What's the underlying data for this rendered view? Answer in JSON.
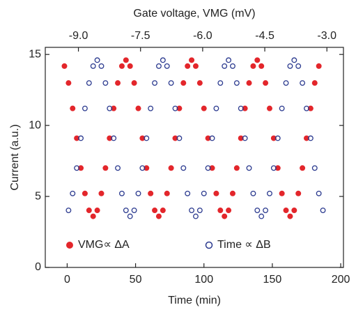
{
  "chart_data": {
    "type": "scatter",
    "x2label": "Gate voltage, VMG (mV)",
    "xlabel": "Time (min)",
    "ylabel": "Current (a.u.)",
    "xlim": [
      -16,
      202
    ],
    "xticks": [
      0,
      50,
      100,
      150,
      200
    ],
    "x2lim": [
      -9.8,
      -2.6
    ],
    "x2ticks": [
      {
        "value": -9,
        "label": "-9.0"
      },
      {
        "value": -7.5,
        "label": "-7.5"
      },
      {
        "value": -6,
        "label": "-6.0"
      },
      {
        "value": -4.5,
        "label": "-4.5"
      },
      {
        "value": -3,
        "label": "-3.0"
      }
    ],
    "ylim": [
      0,
      15.5
    ],
    "yticks": [
      0,
      5,
      10,
      15
    ],
    "series": [
      {
        "name": "VMG∝ ΔA",
        "color": "#e3262b",
        "marker": "filled",
        "x": [
          -2,
          1,
          4,
          7,
          10,
          13,
          16,
          19,
          22,
          25,
          28,
          31,
          34,
          37,
          40,
          43,
          46,
          49,
          52,
          55,
          58,
          61,
          64,
          67,
          70,
          73,
          76,
          79,
          82,
          85,
          88,
          91,
          94,
          97,
          100,
          103,
          106,
          109,
          112,
          115,
          118,
          121,
          124,
          127,
          130,
          133,
          136,
          139,
          142,
          145,
          148,
          151,
          154,
          157,
          160,
          163,
          166,
          169,
          172,
          175,
          178,
          181,
          184
        ],
        "values": [
          14.18,
          12.99,
          11.2,
          9.1,
          7.0,
          5.21,
          4.02,
          3.6,
          4.02,
          5.21,
          7.0,
          9.1,
          11.2,
          12.99,
          14.18,
          14.6,
          14.18,
          12.99,
          11.2,
          9.1,
          7.0,
          5.21,
          4.02,
          3.6,
          4.02,
          5.21,
          7.0,
          9.1,
          11.2,
          12.99,
          14.18,
          14.6,
          14.18,
          12.99,
          11.2,
          9.1,
          7.0,
          5.21,
          4.02,
          3.6,
          4.02,
          5.21,
          7.0,
          9.1,
          11.2,
          12.99,
          14.18,
          14.6,
          14.18,
          12.99,
          11.2,
          9.1,
          7.0,
          5.21,
          4.02,
          3.6,
          4.02,
          5.21,
          7.0,
          9.1,
          11.2,
          12.99,
          14.18
        ]
      },
      {
        "name": "Time ∝ ΔB",
        "color": "#2b3a8f",
        "marker": "open",
        "x": [
          1,
          4,
          7,
          10,
          13,
          16,
          19,
          22,
          25,
          28,
          31,
          34,
          37,
          40,
          43,
          46,
          49,
          52,
          55,
          58,
          61,
          64,
          67,
          70,
          73,
          76,
          79,
          82,
          85,
          88,
          91,
          94,
          97,
          100,
          103,
          106,
          109,
          112,
          115,
          118,
          121,
          124,
          127,
          130,
          133,
          136,
          139,
          142,
          145,
          148,
          151,
          154,
          157,
          160,
          163,
          166,
          169,
          172,
          175,
          178,
          181,
          184,
          187
        ],
        "values": [
          4.02,
          5.21,
          7.0,
          9.1,
          11.2,
          12.99,
          14.18,
          14.6,
          14.18,
          12.99,
          11.2,
          9.1,
          7.0,
          5.21,
          4.02,
          3.6,
          4.02,
          5.21,
          7.0,
          9.1,
          11.2,
          12.99,
          14.18,
          14.6,
          14.18,
          12.99,
          11.2,
          9.1,
          7.0,
          5.21,
          4.02,
          3.6,
          4.02,
          5.21,
          7.0,
          9.1,
          11.2,
          12.99,
          14.18,
          14.6,
          14.18,
          12.99,
          11.2,
          9.1,
          7.0,
          5.21,
          4.02,
          3.6,
          4.02,
          5.21,
          7.0,
          9.1,
          11.2,
          12.99,
          14.18,
          14.6,
          14.18,
          12.99,
          11.2,
          9.1,
          7.0,
          5.21,
          4.02
        ]
      }
    ]
  }
}
